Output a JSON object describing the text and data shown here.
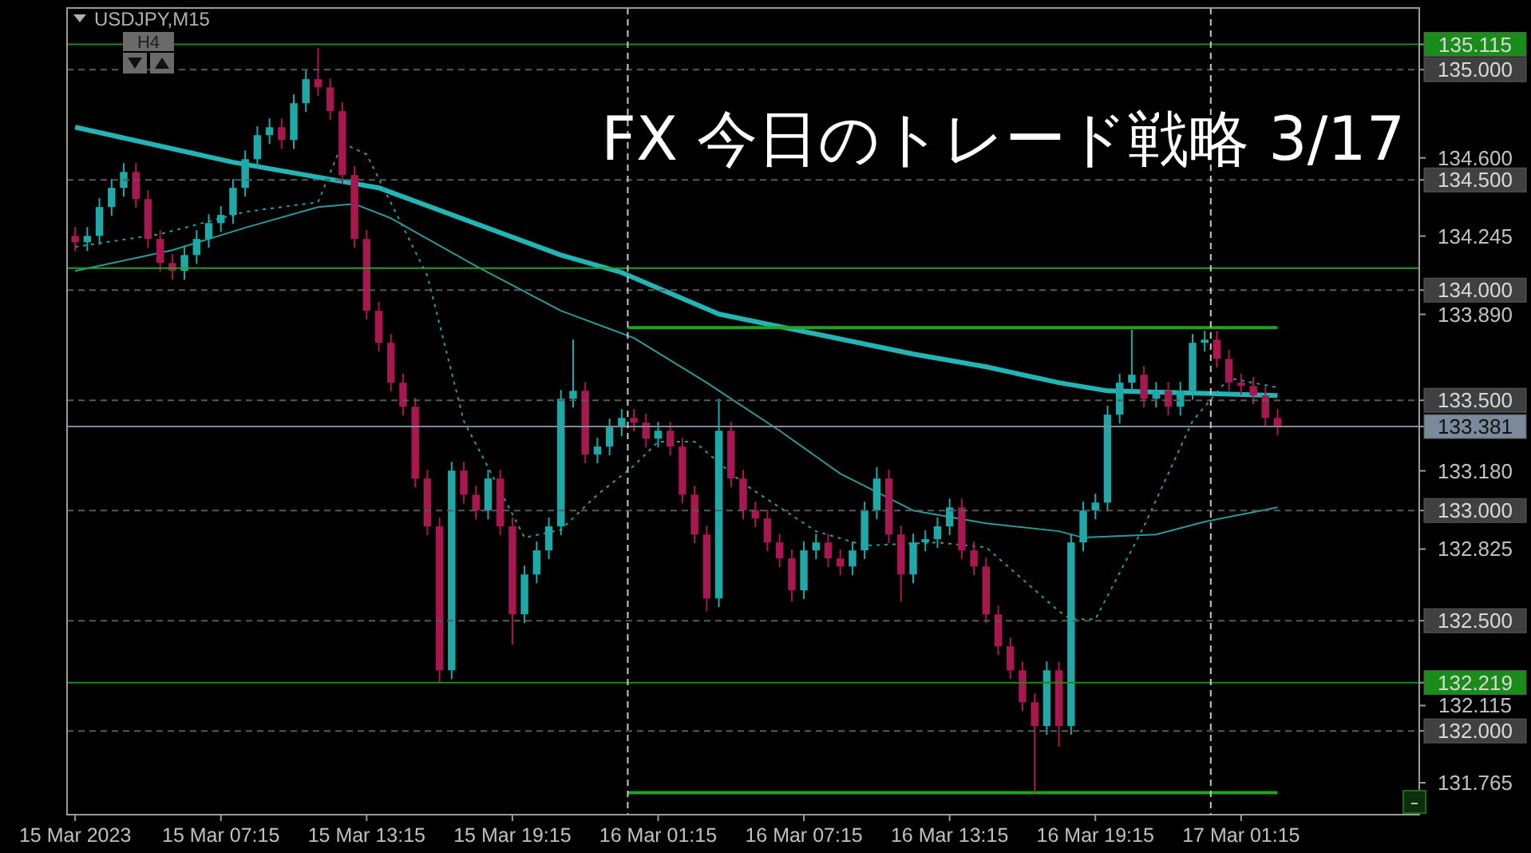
{
  "chart_data": {
    "type": "candlestick",
    "title": "FX 今日のトレード戦略 3/17",
    "subtitle": "USDJPY,M15",
    "annotations": [
      "H4"
    ],
    "x": [
      "2023-03-15T01:15",
      "2023-03-15T01:45",
      "2023-03-15T02:15",
      "2023-03-15T02:45",
      "2023-03-15T03:15",
      "2023-03-15T03:45",
      "2023-03-15T04:15",
      "2023-03-15T04:45",
      "2023-03-15T05:15",
      "2023-03-15T05:45",
      "2023-03-15T06:15",
      "2023-03-15T06:45",
      "2023-03-15T07:15",
      "2023-03-15T07:45",
      "2023-03-15T08:15",
      "2023-03-15T08:45",
      "2023-03-15T09:15",
      "2023-03-15T09:45",
      "2023-03-15T10:15",
      "2023-03-15T10:45",
      "2023-03-15T11:15",
      "2023-03-15T11:45",
      "2023-03-15T12:15",
      "2023-03-15T12:45",
      "2023-03-15T13:15",
      "2023-03-15T13:45",
      "2023-03-15T14:15",
      "2023-03-15T14:45",
      "2023-03-15T15:15",
      "2023-03-15T15:45",
      "2023-03-15T16:15",
      "2023-03-15T16:45",
      "2023-03-15T17:15",
      "2023-03-15T17:45",
      "2023-03-15T18:15",
      "2023-03-15T18:45",
      "2023-03-15T19:15",
      "2023-03-15T19:45",
      "2023-03-15T20:15",
      "2023-03-15T20:45",
      "2023-03-15T21:15",
      "2023-03-15T21:45",
      "2023-03-15T22:15",
      "2023-03-15T22:45",
      "2023-03-15T23:15",
      "2023-03-15T23:45",
      "2023-03-16T00:15",
      "2023-03-16T00:45",
      "2023-03-16T01:15",
      "2023-03-16T01:45",
      "2023-03-16T02:15",
      "2023-03-16T02:45",
      "2023-03-16T03:15",
      "2023-03-16T03:45",
      "2023-03-16T04:15",
      "2023-03-16T04:45",
      "2023-03-16T05:15",
      "2023-03-16T05:45",
      "2023-03-16T06:15",
      "2023-03-16T06:45",
      "2023-03-16T07:15",
      "2023-03-16T07:45",
      "2023-03-16T08:15",
      "2023-03-16T08:45",
      "2023-03-16T09:15",
      "2023-03-16T09:45",
      "2023-03-16T10:15",
      "2023-03-16T10:45",
      "2023-03-16T11:15",
      "2023-03-16T11:45",
      "2023-03-16T12:15",
      "2023-03-16T12:45",
      "2023-03-16T13:15",
      "2023-03-16T13:45",
      "2023-03-16T14:15",
      "2023-03-16T14:45",
      "2023-03-16T15:15",
      "2023-03-16T15:45",
      "2023-03-16T16:15",
      "2023-03-16T16:45",
      "2023-03-16T17:15",
      "2023-03-16T17:45",
      "2023-03-16T18:15",
      "2023-03-16T18:45",
      "2023-03-16T19:15",
      "2023-03-16T19:45",
      "2023-03-16T20:15",
      "2023-03-16T20:45",
      "2023-03-16T21:15",
      "2023-03-16T21:45",
      "2023-03-16T22:15",
      "2023-03-16T22:45",
      "2023-03-16T23:15",
      "2023-03-16T23:45",
      "2023-03-17T00:15",
      "2023-03-17T00:45",
      "2023-03-17T01:15",
      "2023-03-17T01:45",
      "2023-03-17T02:15",
      "2023-03-17T02:45"
    ],
    "ohlc": [
      [
        134.246,
        134.286,
        134.177,
        134.217
      ],
      [
        134.217,
        134.286,
        134.177,
        134.246
      ],
      [
        134.246,
        134.417,
        134.206,
        134.377
      ],
      [
        134.377,
        134.504,
        134.337,
        134.464
      ],
      [
        134.464,
        134.576,
        134.424,
        134.536
      ],
      [
        134.536,
        134.576,
        134.373,
        134.413
      ],
      [
        134.413,
        134.453,
        134.192,
        134.232
      ],
      [
        134.232,
        134.272,
        134.083,
        134.123
      ],
      [
        134.123,
        134.163,
        134.047,
        134.087
      ],
      [
        134.087,
        134.199,
        134.047,
        134.159
      ],
      [
        134.159,
        134.272,
        134.119,
        134.232
      ],
      [
        134.232,
        134.344,
        134.192,
        134.304
      ],
      [
        134.304,
        134.381,
        134.264,
        134.341
      ],
      [
        134.341,
        134.504,
        134.301,
        134.464
      ],
      [
        134.464,
        134.634,
        134.424,
        134.594
      ],
      [
        134.594,
        134.743,
        134.554,
        134.703
      ],
      [
        134.703,
        134.779,
        134.663,
        134.739
      ],
      [
        134.739,
        134.779,
        134.641,
        134.681
      ],
      [
        134.681,
        134.888,
        134.641,
        134.848
      ],
      [
        134.848,
        134.997,
        134.808,
        134.957
      ],
      [
        134.957,
        135.1,
        134.88,
        134.92
      ],
      [
        134.92,
        134.96,
        134.772,
        134.812
      ],
      [
        134.812,
        134.852,
        134.482,
        134.522
      ],
      [
        134.522,
        134.562,
        134.192,
        134.232
      ],
      [
        134.232,
        134.272,
        133.866,
        133.906
      ],
      [
        133.906,
        133.946,
        133.721,
        133.761
      ],
      [
        133.761,
        133.801,
        133.54,
        133.58
      ],
      [
        133.58,
        133.62,
        133.431,
        133.471
      ],
      [
        133.471,
        133.511,
        133.105,
        133.145
      ],
      [
        133.145,
        133.185,
        132.888,
        132.928
      ],
      [
        132.928,
        132.968,
        132.22,
        132.275
      ],
      [
        132.275,
        133.221,
        132.235,
        133.181
      ],
      [
        133.181,
        133.221,
        133.032,
        133.072
      ],
      [
        133.072,
        133.112,
        132.96,
        133.0
      ],
      [
        133.0,
        133.185,
        132.96,
        133.145
      ],
      [
        133.145,
        133.185,
        132.888,
        132.928
      ],
      [
        132.928,
        132.968,
        132.391,
        132.529
      ],
      [
        132.529,
        132.75,
        132.489,
        132.71
      ],
      [
        132.71,
        132.859,
        132.67,
        132.819
      ],
      [
        132.819,
        132.968,
        132.779,
        132.928
      ],
      [
        132.928,
        133.547,
        132.888,
        133.507
      ],
      [
        133.507,
        133.775,
        133.467,
        133.543
      ],
      [
        133.543,
        133.583,
        133.214,
        133.254
      ],
      [
        133.254,
        133.33,
        133.214,
        133.29
      ],
      [
        133.29,
        133.417,
        133.25,
        133.377
      ],
      [
        133.377,
        133.46,
        133.337,
        133.42
      ],
      [
        133.42,
        133.46,
        133.359,
        133.399
      ],
      [
        133.399,
        133.439,
        133.286,
        133.326
      ],
      [
        133.326,
        133.402,
        133.286,
        133.362
      ],
      [
        133.362,
        133.402,
        133.25,
        133.29
      ],
      [
        133.29,
        133.33,
        133.032,
        133.072
      ],
      [
        133.072,
        133.112,
        132.851,
        132.891
      ],
      [
        132.891,
        132.931,
        132.543,
        132.601
      ],
      [
        132.601,
        133.507,
        132.561,
        133.362
      ],
      [
        133.362,
        133.402,
        133.105,
        133.145
      ],
      [
        133.145,
        133.185,
        132.96,
        133.0
      ],
      [
        133.0,
        133.04,
        132.924,
        132.964
      ],
      [
        132.964,
        133.004,
        132.815,
        132.855
      ],
      [
        132.855,
        132.895,
        132.743,
        132.783
      ],
      [
        132.783,
        132.823,
        132.587,
        132.638
      ],
      [
        132.638,
        132.859,
        132.598,
        132.819
      ],
      [
        132.819,
        132.895,
        132.779,
        132.855
      ],
      [
        132.855,
        132.895,
        132.743,
        132.783
      ],
      [
        132.783,
        132.823,
        132.706,
        132.746
      ],
      [
        132.746,
        132.859,
        132.706,
        132.819
      ],
      [
        132.819,
        133.04,
        132.779,
        133.0
      ],
      [
        133.0,
        133.196,
        132.96,
        133.145
      ],
      [
        133.145,
        133.185,
        132.851,
        132.891
      ],
      [
        132.891,
        132.931,
        132.587,
        132.71
      ],
      [
        132.71,
        132.895,
        132.67,
        132.855
      ],
      [
        132.855,
        132.91,
        132.815,
        132.87
      ],
      [
        132.87,
        132.968,
        132.83,
        132.928
      ],
      [
        132.928,
        133.054,
        132.888,
        133.014
      ],
      [
        133.014,
        133.054,
        132.779,
        132.819
      ],
      [
        132.819,
        132.859,
        132.706,
        132.746
      ],
      [
        132.746,
        132.786,
        132.489,
        132.529
      ],
      [
        132.529,
        132.569,
        132.344,
        132.384
      ],
      [
        132.384,
        132.424,
        132.235,
        132.275
      ],
      [
        132.275,
        132.315,
        132.09,
        132.13
      ],
      [
        132.13,
        132.17,
        131.72,
        132.022
      ],
      [
        132.022,
        132.315,
        131.982,
        132.275
      ],
      [
        132.275,
        132.315,
        131.928,
        132.022
      ],
      [
        132.022,
        132.895,
        131.982,
        132.855
      ],
      [
        132.855,
        133.04,
        132.815,
        133.0
      ],
      [
        133.0,
        133.076,
        132.96,
        133.036
      ],
      [
        133.036,
        133.475,
        132.996,
        133.435
      ],
      [
        133.435,
        133.62,
        133.395,
        133.58
      ],
      [
        133.58,
        133.82,
        133.54,
        133.616
      ],
      [
        133.616,
        133.656,
        133.467,
        133.507
      ],
      [
        133.507,
        133.583,
        133.467,
        133.543
      ],
      [
        133.543,
        133.583,
        133.431,
        133.471
      ],
      [
        133.471,
        133.583,
        133.431,
        133.543
      ],
      [
        133.543,
        133.801,
        133.503,
        133.761
      ],
      [
        133.761,
        133.815,
        133.721,
        133.775
      ],
      [
        133.775,
        133.815,
        133.648,
        133.688
      ],
      [
        133.688,
        133.728,
        133.54,
        133.58
      ],
      [
        133.58,
        133.62,
        133.525,
        133.565
      ],
      [
        133.565,
        133.605,
        133.482,
        133.522
      ],
      [
        133.522,
        133.562,
        133.38,
        133.42
      ],
      [
        133.42,
        133.46,
        133.341,
        133.381
      ]
    ],
    "colors": [
      "#a8174f",
      "#1fa8a8",
      "#1fa8a8",
      "#1fa8a8",
      "#1fa8a8",
      "#a8174f",
      "#a8174f",
      "#a8174f",
      "#a8174f",
      "#1fa8a8",
      "#1fa8a8",
      "#1fa8a8",
      "#1fa8a8",
      "#1fa8a8",
      "#1fa8a8",
      "#1fa8a8",
      "#1fa8a8",
      "#a8174f",
      "#1fa8a8",
      "#1fa8a8",
      "#a8174f",
      "#a8174f",
      "#a8174f",
      "#a8174f",
      "#a8174f",
      "#a8174f",
      "#a8174f",
      "#a8174f",
      "#a8174f",
      "#a8174f",
      "#a8174f",
      "#1fa8a8",
      "#a8174f",
      "#a8174f",
      "#1fa8a8",
      "#a8174f",
      "#a8174f",
      "#1fa8a8",
      "#1fa8a8",
      "#1fa8a8",
      "#1fa8a8",
      "#1fa8a8",
      "#a8174f",
      "#1fa8a8",
      "#1fa8a8",
      "#1fa8a8",
      "#a8174f",
      "#a8174f",
      "#1fa8a8",
      "#a8174f",
      "#a8174f",
      "#a8174f",
      "#a8174f",
      "#1fa8a8",
      "#a8174f",
      "#a8174f",
      "#a8174f",
      "#a8174f",
      "#a8174f",
      "#a8174f",
      "#1fa8a8",
      "#1fa8a8",
      "#a8174f",
      "#a8174f",
      "#1fa8a8",
      "#1fa8a8",
      "#1fa8a8",
      "#a8174f",
      "#a8174f",
      "#1fa8a8",
      "#1fa8a8",
      "#1fa8a8",
      "#1fa8a8",
      "#a8174f",
      "#a8174f",
      "#a8174f",
      "#a8174f",
      "#a8174f",
      "#a8174f",
      "#a8174f",
      "#1fa8a8",
      "#a8174f",
      "#1fa8a8",
      "#1fa8a8",
      "#1fa8a8",
      "#1fa8a8",
      "#1fa8a8",
      "#1fa8a8",
      "#a8174f",
      "#1fa8a8",
      "#a8174f",
      "#1fa8a8",
      "#1fa8a8",
      "#1fa8a8",
      "#a8174f",
      "#a8174f",
      "#a8174f",
      "#a8174f",
      "#a8174f",
      "#a8174f"
    ],
    "series": [
      {
        "type": "line",
        "color": "#22b5b5",
        "x": [
          "2023-03-15T01:15",
          "2023-03-15T07:45",
          "2023-03-15T13:45",
          "2023-03-15T21:15",
          "2023-03-15T23:45",
          "2023-03-16T03:45",
          "2023-03-16T07:15",
          "2023-03-16T11:45",
          "2023-03-16T14:45",
          "2023-03-16T17:45",
          "2023-03-16T19:45",
          "2023-03-17T02:45"
        ],
        "values": [
          134.739,
          134.58,
          134.464,
          134.159,
          134.08,
          133.891,
          133.812,
          133.71,
          133.652,
          133.58,
          133.543,
          133.522
        ]
      },
      {
        "type": "line",
        "color": "#2a9a9a",
        "x": [
          "2023-03-15T01:15",
          "2023-03-15T05:15",
          "2023-03-15T08:15",
          "2023-03-15T11:15",
          "2023-03-15T12:45",
          "2023-03-15T14:15",
          "2023-03-15T17:45",
          "2023-03-15T21:15",
          "2023-03-16T00:15",
          "2023-03-16T03:15",
          "2023-03-16T06:15",
          "2023-03-16T08:45",
          "2023-03-16T11:45",
          "2023-03-16T14:45",
          "2023-03-16T17:45",
          "2023-03-16T18:45",
          "2023-03-16T21:45",
          "2023-03-16T23:45",
          "2023-03-17T02:45"
        ],
        "values": [
          134.087,
          134.181,
          134.283,
          134.377,
          134.391,
          134.326,
          134.109,
          133.906,
          133.783,
          133.58,
          133.362,
          133.167,
          133.0,
          132.942,
          132.906,
          132.877,
          132.891,
          132.949,
          133.014
        ]
      },
      {
        "type": "line",
        "color": "#2a9a9a",
        "line_style": "dotted",
        "x": [
          "2023-03-15T01:15",
          "2023-03-15T04:45",
          "2023-03-15T08:15",
          "2023-03-15T11:15",
          "2023-03-15T12:15",
          "2023-03-15T13:15",
          "2023-03-15T15:45",
          "2023-03-15T17:15",
          "2023-03-15T18:15",
          "2023-03-15T19:45",
          "2023-03-15T21:15",
          "2023-03-15T22:45",
          "2023-03-16T00:15",
          "2023-03-16T01:15",
          "2023-03-16T02:45",
          "2023-03-16T04:45",
          "2023-03-16T07:45",
          "2023-03-16T09:45",
          "2023-03-16T12:45",
          "2023-03-16T14:45",
          "2023-03-16T17:45",
          "2023-03-16T18:15",
          "2023-03-16T19:15",
          "2023-03-16T21:15",
          "2023-03-16T23:15",
          "2023-03-17T00:45",
          "2023-03-17T02:45"
        ],
        "values": [
          134.196,
          134.254,
          134.355,
          134.399,
          134.667,
          134.616,
          134.065,
          133.406,
          133.196,
          132.877,
          132.913,
          133.072,
          133.203,
          133.312,
          133.312,
          133.123,
          132.906,
          132.841,
          132.855,
          132.833,
          132.543,
          132.507,
          132.507,
          132.928,
          133.406,
          133.601,
          133.558
        ]
      },
      {
        "type": "line",
        "color": "#1fa51f",
        "x": [
          "2023-03-16T00:00",
          "2023-03-17T02:45"
        ],
        "values": [
          133.83,
          133.83
        ]
      },
      {
        "type": "line",
        "color": "#1fa51f",
        "x": [
          "2023-03-16T00:00",
          "2023-03-17T02:45"
        ],
        "values": [
          131.72,
          131.72
        ]
      }
    ],
    "ref_lines": [
      {
        "axis": "y",
        "value": 135.115,
        "color": "#1a8c1a"
      },
      {
        "axis": "y",
        "value": 134.1,
        "color": "#1fa51f"
      },
      {
        "axis": "y",
        "value": 132.219,
        "color": "#1a8c1a"
      },
      {
        "axis": "y",
        "value": 133.381,
        "color": "#7a8a9a"
      },
      {
        "axis": "y",
        "value": 135,
        "color": "#5a5a5a",
        "line_style": "dashed"
      },
      {
        "axis": "y",
        "value": 134.5,
        "color": "#5a5a5a",
        "line_style": "dashed"
      },
      {
        "axis": "y",
        "value": 134,
        "color": "#5a5a5a",
        "line_style": "dashed"
      },
      {
        "axis": "y",
        "value": 133.5,
        "color": "#5a5a5a",
        "line_style": "dashed"
      },
      {
        "axis": "y",
        "value": 133,
        "color": "#5a5a5a",
        "line_style": "dashed"
      },
      {
        "axis": "y",
        "value": 132.5,
        "color": "#5a5a5a",
        "line_style": "dashed"
      },
      {
        "axis": "y",
        "value": 132,
        "color": "#5a5a5a",
        "line_style": "dashed"
      },
      {
        "axis": "x",
        "value": "2023-03-16T00:00",
        "color": "#c8c8c8",
        "line_style": "dashed"
      },
      {
        "axis": "x",
        "value": "2023-03-17T00:00",
        "color": "#c8c8c8",
        "line_style": "dashed"
      }
    ],
    "xlim": [
      "2023-03-15T00:55",
      "2023-03-17T08:35"
    ],
    "xticks": [
      {
        "value": "2023-03-15T01:15",
        "label": "15 Mar 2023"
      },
      {
        "value": "2023-03-15T07:15",
        "label": "15 Mar 07:15"
      },
      {
        "value": "2023-03-15T13:15",
        "label": "15 Mar 13:15"
      },
      {
        "value": "2023-03-15T19:15",
        "label": "15 Mar 19:15"
      },
      {
        "value": "2023-03-16T01:15",
        "label": "16 Mar 01:15"
      },
      {
        "value": "2023-03-16T07:15",
        "label": "16 Mar 07:15"
      },
      {
        "value": "2023-03-16T13:15",
        "label": "16 Mar 13:15"
      },
      {
        "value": "2023-03-16T19:15",
        "label": "16 Mar 19:15"
      },
      {
        "value": "2023-03-17T01:15",
        "label": "17 Mar 01:15"
      }
    ],
    "ylim": [
      131.62,
      135.28
    ],
    "yticks": [
      {
        "value": 135.115,
        "label": "135.115"
      },
      {
        "value": 135,
        "label": "135.000"
      },
      {
        "value": 134.6,
        "label": "134.600"
      },
      {
        "value": 134.5,
        "label": "134.500"
      },
      {
        "value": 134.245,
        "label": "134.245"
      },
      {
        "value": 134,
        "label": "134.000"
      },
      {
        "value": 133.89,
        "label": "133.890"
      },
      {
        "value": 133.5,
        "label": "133.500"
      },
      {
        "value": 133.381,
        "label": "133.381"
      },
      {
        "value": 133.18,
        "label": "133.180"
      },
      {
        "value": 133,
        "label": "133.000"
      },
      {
        "value": 132.825,
        "label": "132.825"
      },
      {
        "value": 132.5,
        "label": "132.500"
      },
      {
        "value": 132.219,
        "label": "132.219"
      },
      {
        "value": 132.115,
        "label": "132.115"
      },
      {
        "value": 132,
        "label": "132.000"
      },
      {
        "value": 131.765,
        "label": "131.765"
      }
    ]
  }
}
